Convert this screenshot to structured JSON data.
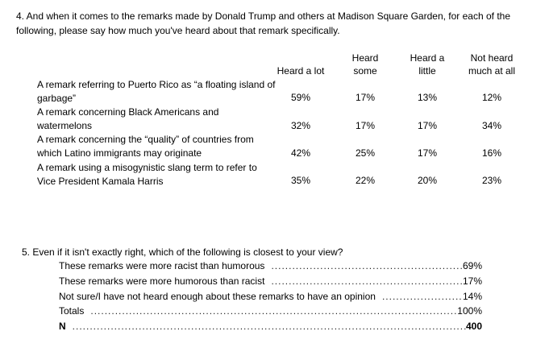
{
  "q4": {
    "question": "4. And when it comes to the remarks made by Donald Trump and others at Madison Square Garden, for each of the following, please say how much you've heard about that remark specifically.",
    "columns": [
      "Heard a lot",
      "Heard some",
      "Heard a little",
      "Not heard much at all"
    ],
    "rows": [
      {
        "label": "A remark referring to Puerto Rico as “a floating island of garbage”",
        "values": [
          "59%",
          "17%",
          "13%",
          "12%"
        ]
      },
      {
        "label": "A remark concerning Black Americans and watermelons",
        "values": [
          "32%",
          "17%",
          "17%",
          "34%"
        ]
      },
      {
        "label": "A remark concerning the “quality” of countries from which Latino immigrants may originate",
        "values": [
          "42%",
          "25%",
          "17%",
          "16%"
        ]
      },
      {
        "label": "A remark using a misogynistic slang term to refer to Vice President Kamala Harris",
        "values": [
          "35%",
          "22%",
          "20%",
          "23%"
        ]
      }
    ]
  },
  "q5": {
    "question": "5. Even if it isn't exactly right, which of the following is closest to your view?",
    "items": [
      {
        "label": "These remarks were more racist than humorous",
        "value": "69%"
      },
      {
        "label": "These remarks were more humorous than racist",
        "value": "17%"
      },
      {
        "label": "Not sure/I have not heard enough about these remarks to have an opinion",
        "value": "14%"
      },
      {
        "label": "Totals",
        "value": "100%"
      },
      {
        "label": "N",
        "value": "400"
      }
    ]
  }
}
